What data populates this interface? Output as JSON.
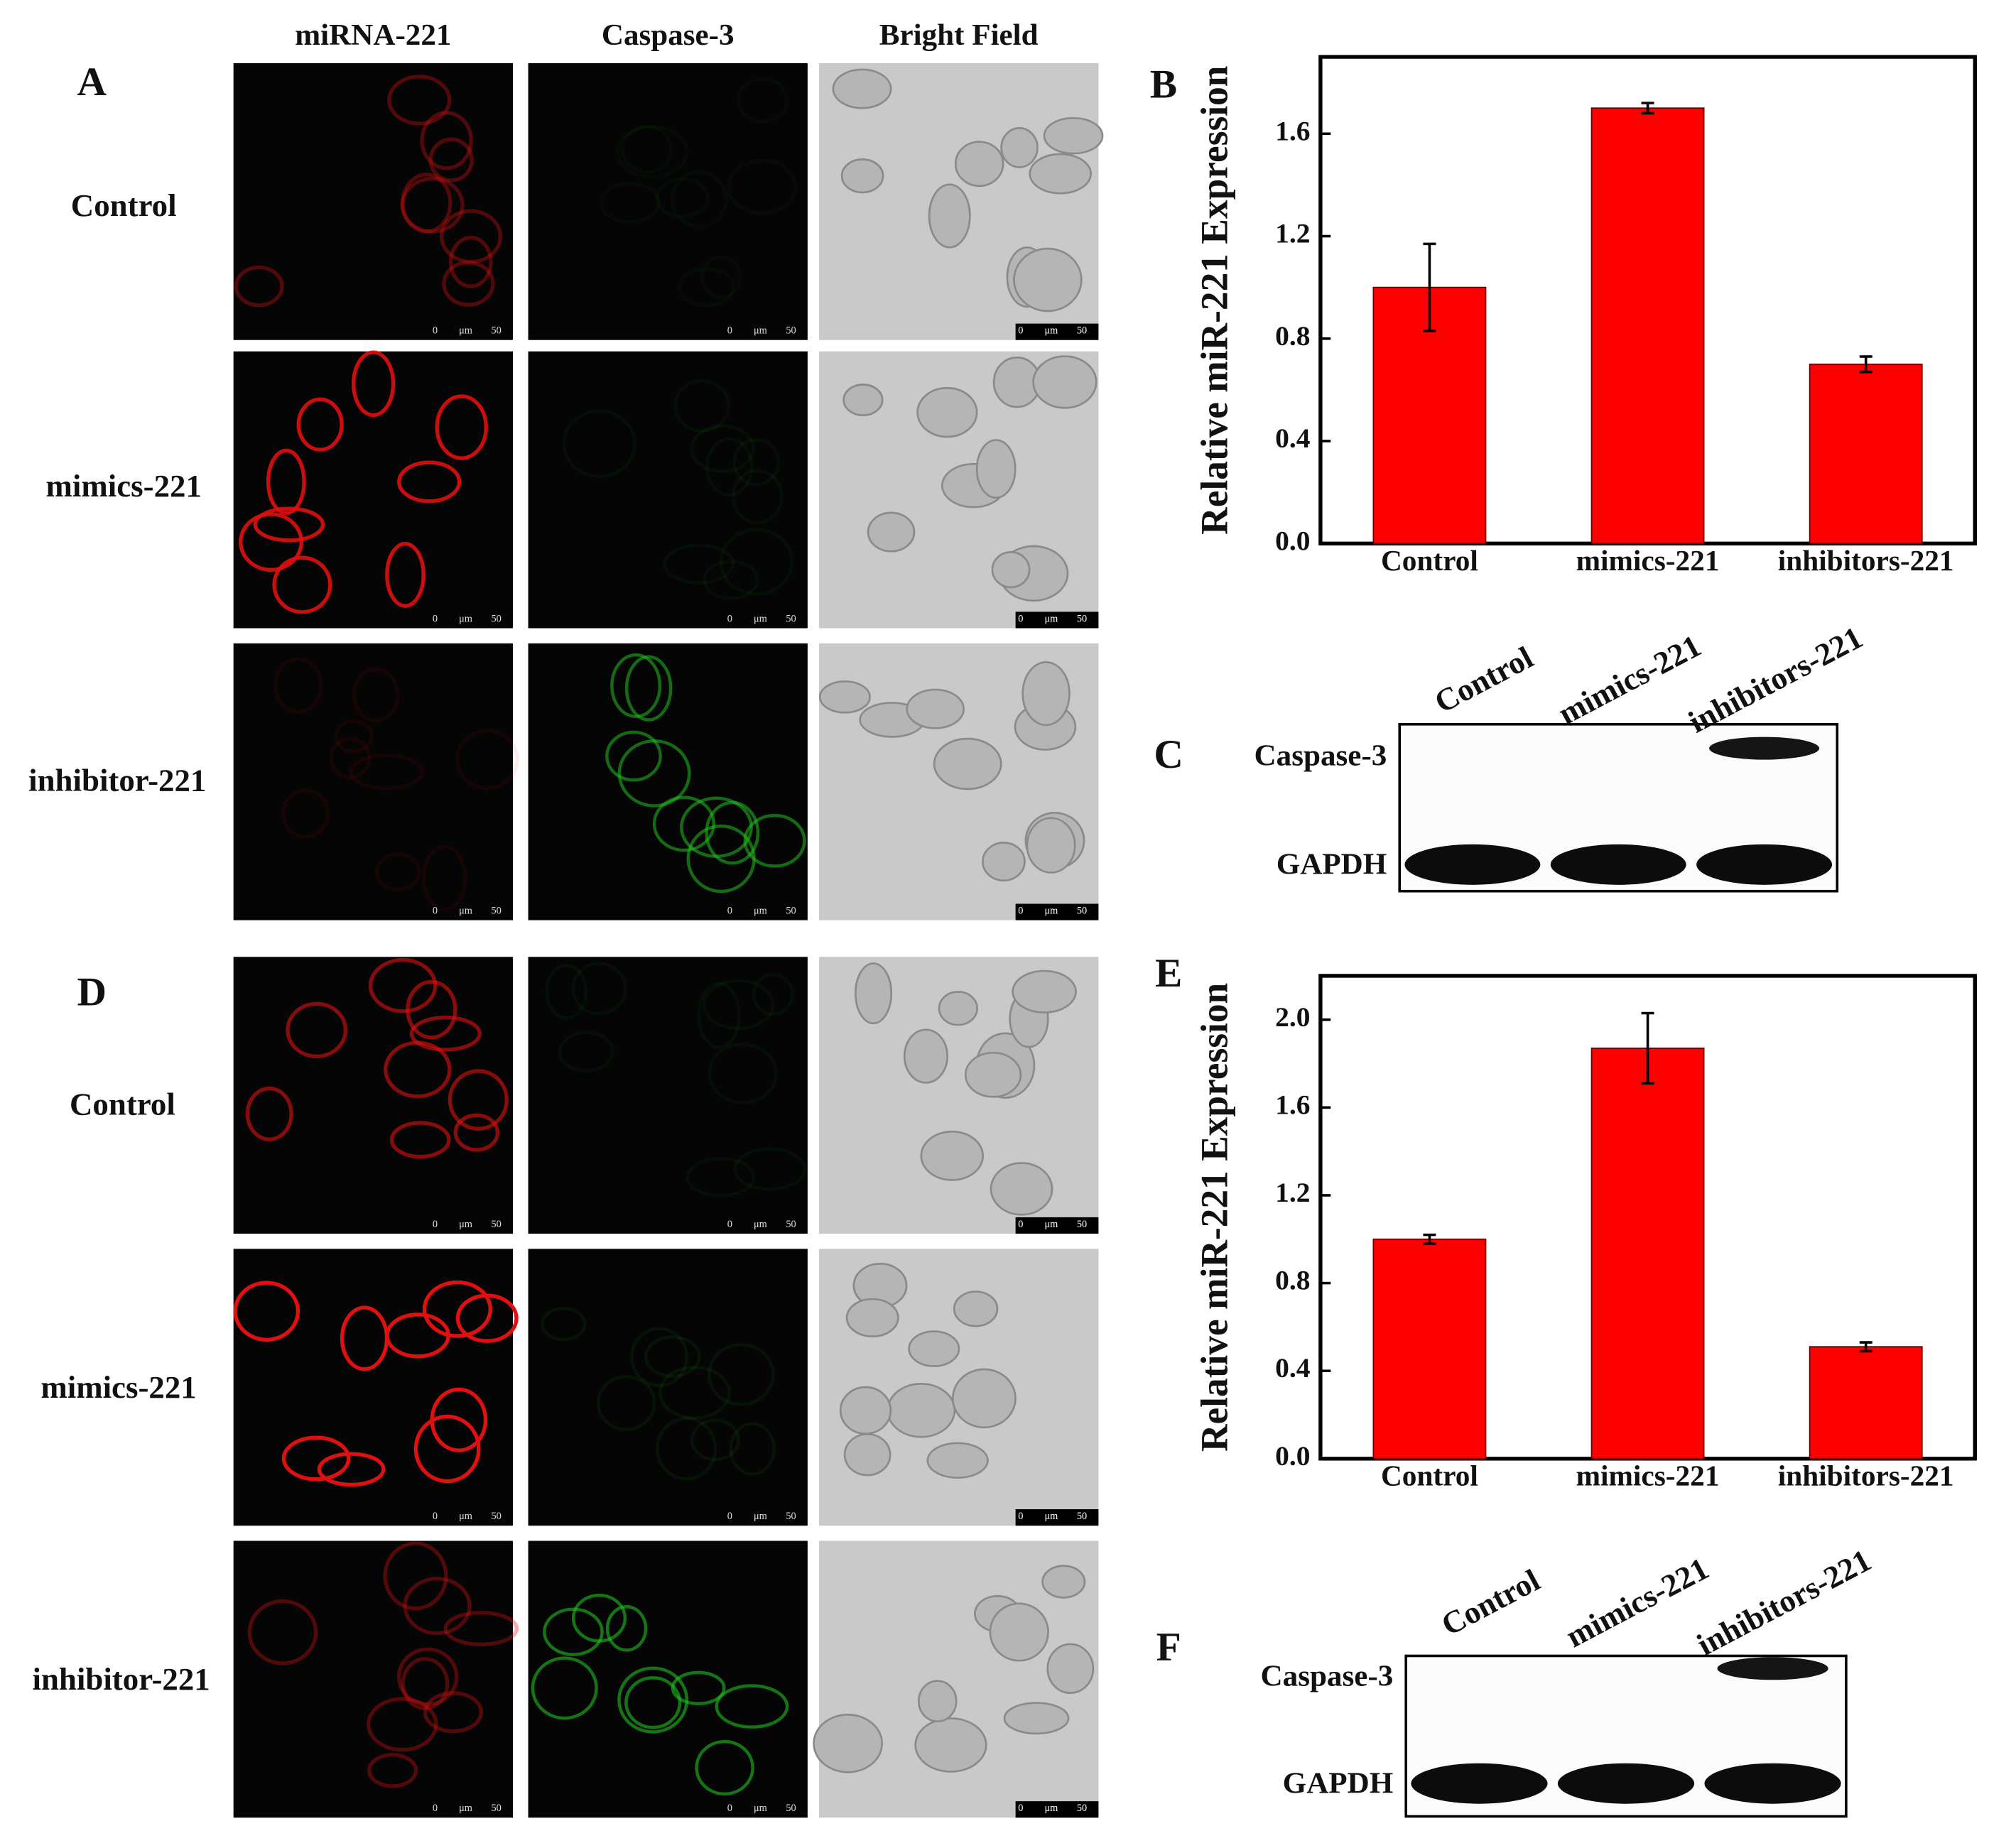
{
  "column_headers": [
    "miRNA-221",
    "Caspase-3",
    "Bright Field"
  ],
  "scale_bar": [
    "0",
    "μm",
    "50"
  ],
  "panels": {
    "A": {
      "letter": "A",
      "row_labels": [
        "Control",
        "mimics-221",
        "inhibitor-221"
      ]
    },
    "D": {
      "letter": "D",
      "row_labels": [
        "Control",
        "mimics-221",
        "inhibitor-221"
      ]
    },
    "C": {
      "letter": "C",
      "lanes": [
        "Control",
        "mimics-221",
        "inhibitors-221"
      ],
      "rows": [
        "Caspase-3",
        "GAPDH"
      ]
    },
    "F": {
      "letter": "F",
      "lanes": [
        "Control",
        "mimics-221",
        "inhibitors-221"
      ],
      "rows": [
        "Caspase-3",
        "GAPDH"
      ]
    }
  },
  "chart_data": [
    {
      "type": "bar",
      "panel_label": "B",
      "y_label": "Relative miR-221 Expression",
      "categories": [
        "Control",
        "mimics-221",
        "inhibitors-221"
      ],
      "values": [
        1.0,
        1.7,
        0.7
      ],
      "errors": [
        0.17,
        0.02,
        0.03
      ],
      "color": "#ff0000",
      "ylim": [
        0,
        1.9
      ],
      "yticks": [
        {
          "value": 0,
          "label": "0.0"
        },
        0.4,
        0.8,
        1.2,
        1.6
      ]
    },
    {
      "type": "bar",
      "panel_label": "E",
      "y_label": "Relative miR-221 Expression",
      "categories": [
        "Control",
        "mimics-221",
        "inhibitors-221"
      ],
      "values": [
        1.0,
        1.87,
        0.51
      ],
      "errors": [
        0.02,
        0.16,
        0.02
      ],
      "color": "#ff0000",
      "ylim": [
        0,
        2.2
      ],
      "yticks": [
        {
          "value": 0,
          "label": "0.0"
        },
        0.4,
        0.8,
        1.2,
        1.6,
        {
          "value": 2,
          "label": "2.0"
        }
      ]
    }
  ]
}
